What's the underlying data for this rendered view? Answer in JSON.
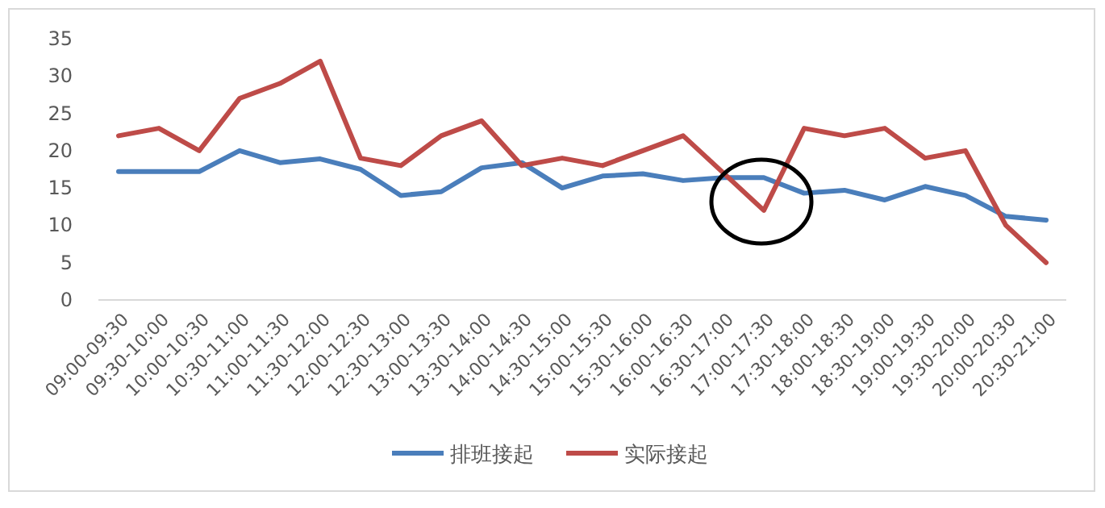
{
  "chart_data": {
    "type": "line",
    "categories": [
      "09:00-09:30",
      "09:30-10:00",
      "10:00-10:30",
      "10:30-11:00",
      "11:00-11:30",
      "11:30-12:00",
      "12:00-12:30",
      "12:30-13:00",
      "13:00-13:30",
      "13:30-14:00",
      "14:00-14:30",
      "14:30-15:00",
      "15:00-15:30",
      "15:30-16:00",
      "16:00-16:30",
      "16:30-17:00",
      "17:00-17:30",
      "17:30-18:00",
      "18:00-18:30",
      "18:30-19:00",
      "19:00-19:30",
      "19:30-20:00",
      "20:00-20:30",
      "20:30-21:00"
    ],
    "series": [
      {
        "name": "排班接起",
        "color": "#4a7ebb",
        "values": [
          17.2,
          17.2,
          17.2,
          20,
          18.4,
          18.9,
          17.5,
          14,
          14.5,
          17.7,
          18.4,
          15,
          16.6,
          16.9,
          16,
          16.4,
          16.4,
          14.3,
          14.7,
          13.4,
          15.2,
          14,
          11.2,
          10.7
        ]
      },
      {
        "name": "实际接起",
        "color": "#be4b48",
        "values": [
          22,
          23,
          20,
          27,
          29,
          32,
          19,
          18,
          22,
          24,
          18,
          19,
          18,
          20,
          22,
          17,
          12,
          23,
          22,
          23,
          19,
          20,
          10,
          5
        ]
      }
    ],
    "ylim": [
      0,
      35
    ],
    "yticks": [
      0,
      5,
      10,
      15,
      20,
      25,
      30,
      35
    ],
    "grid": false,
    "legend": "bottom",
    "marker": "none",
    "line_style": "solid"
  }
}
